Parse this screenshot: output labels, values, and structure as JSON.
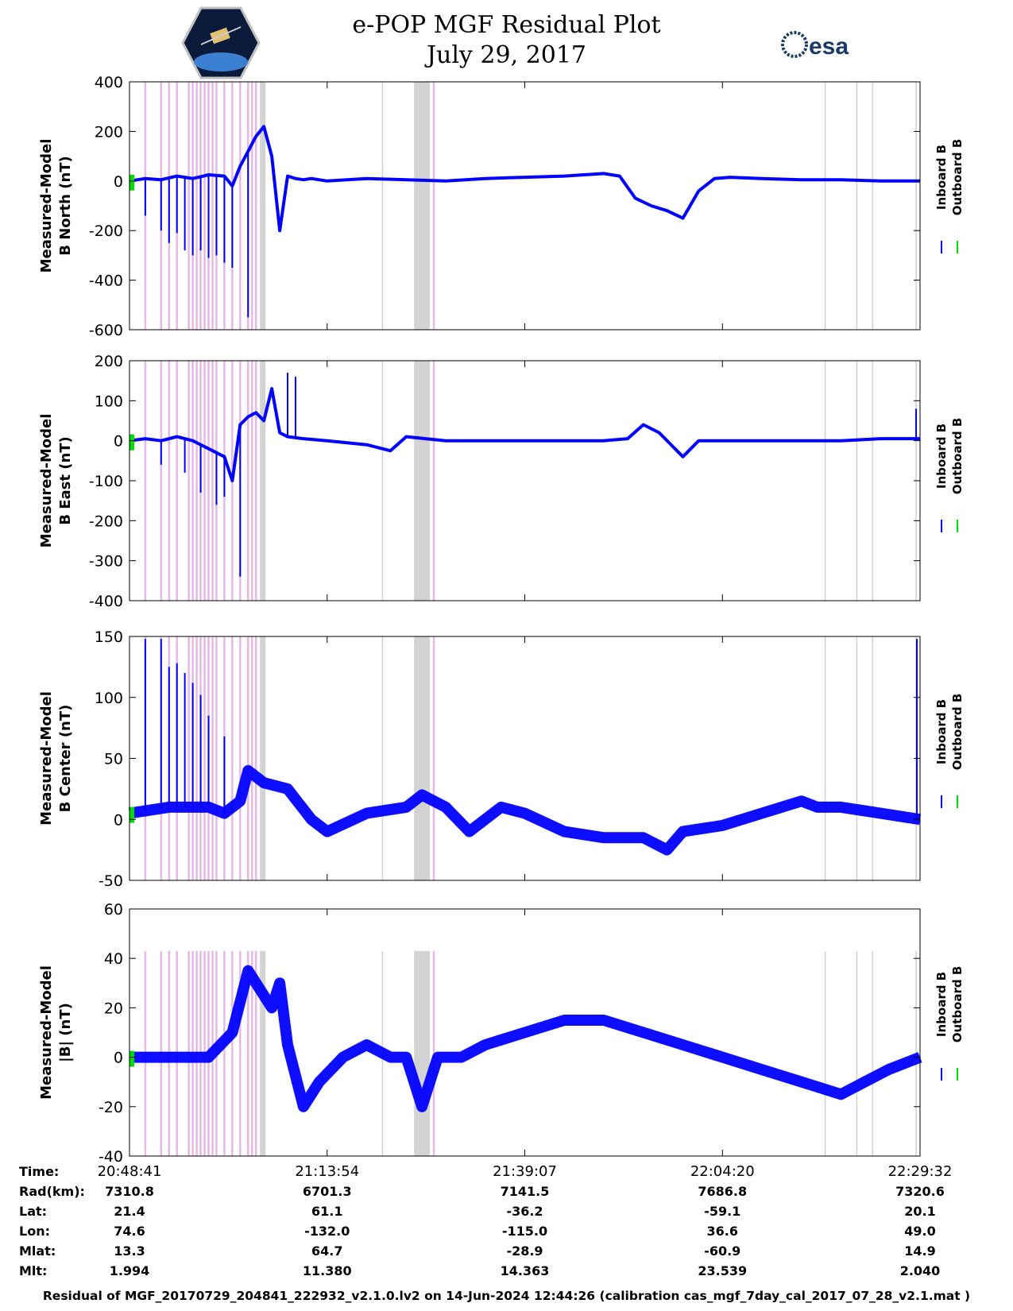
{
  "header": {
    "title_line1": "e-POP MGF Residual Plot",
    "title_line2": "July 29, 2017"
  },
  "legend": {
    "inboard": "Inboard B",
    "outboard": "Outboard B"
  },
  "colors": {
    "inboard": "#0000ff",
    "outboard": "#00dd00",
    "gray_band": "#d3d3d3",
    "pink_band": "#e6b8e6"
  },
  "chart_data": [
    {
      "type": "line",
      "ylabel_line1": "Measured-Model",
      "ylabel_line2": "B North (nT)",
      "ylim": [
        -600,
        400
      ],
      "yticks": [
        400,
        200,
        0,
        -200,
        -400,
        -600
      ],
      "series": [
        {
          "name": "Inboard B",
          "color": "#0000ff",
          "x": [
            0,
            0.02,
            0.04,
            0.06,
            0.08,
            0.1,
            0.12,
            0.13,
            0.14,
            0.15,
            0.16,
            0.17,
            0.18,
            0.19,
            0.2,
            0.21,
            0.22,
            0.23,
            0.25,
            0.3,
            0.35,
            0.4,
            0.45,
            0.5,
            0.55,
            0.6,
            0.62,
            0.64,
            0.66,
            0.68,
            0.7,
            0.72,
            0.74,
            0.76,
            0.8,
            0.85,
            0.9,
            0.95,
            1.0
          ],
          "y": [
            0,
            10,
            5,
            20,
            10,
            25,
            20,
            -20,
            60,
            120,
            180,
            220,
            100,
            -200,
            20,
            10,
            5,
            10,
            0,
            10,
            5,
            0,
            10,
            15,
            20,
            30,
            20,
            -70,
            -100,
            -120,
            -150,
            -40,
            10,
            15,
            10,
            5,
            5,
            0,
            0
          ]
        }
      ],
      "spikes": [
        {
          "x": 0.02,
          "y": -140
        },
        {
          "x": 0.04,
          "y": -200
        },
        {
          "x": 0.05,
          "y": -250
        },
        {
          "x": 0.06,
          "y": -210
        },
        {
          "x": 0.07,
          "y": -280
        },
        {
          "x": 0.08,
          "y": -300
        },
        {
          "x": 0.09,
          "y": -280
        },
        {
          "x": 0.1,
          "y": -310
        },
        {
          "x": 0.11,
          "y": -300
        },
        {
          "x": 0.12,
          "y": -330
        },
        {
          "x": 0.13,
          "y": -350
        },
        {
          "x": 0.15,
          "y": -550
        }
      ]
    },
    {
      "type": "line",
      "ylabel_line1": "Measured-Model",
      "ylabel_line2": "B East (nT)",
      "ylim": [
        -400,
        200
      ],
      "yticks": [
        200,
        100,
        0,
        -100,
        -200,
        -300,
        -400
      ],
      "series": [
        {
          "name": "Inboard B",
          "color": "#0000ff",
          "x": [
            0,
            0.02,
            0.04,
            0.06,
            0.08,
            0.1,
            0.12,
            0.13,
            0.14,
            0.15,
            0.16,
            0.17,
            0.18,
            0.19,
            0.2,
            0.22,
            0.25,
            0.3,
            0.33,
            0.35,
            0.4,
            0.5,
            0.6,
            0.63,
            0.65,
            0.67,
            0.7,
            0.72,
            0.8,
            0.9,
            0.95,
            1.0
          ],
          "y": [
            0,
            5,
            0,
            10,
            0,
            -20,
            -40,
            -100,
            40,
            60,
            70,
            50,
            130,
            20,
            10,
            5,
            0,
            -10,
            -25,
            10,
            0,
            0,
            0,
            5,
            40,
            20,
            -40,
            0,
            0,
            0,
            5,
            5
          ]
        }
      ],
      "spikes": [
        {
          "x": 0.04,
          "y": -60
        },
        {
          "x": 0.07,
          "y": -80
        },
        {
          "x": 0.09,
          "y": -130
        },
        {
          "x": 0.11,
          "y": -160
        },
        {
          "x": 0.12,
          "y": -140
        },
        {
          "x": 0.14,
          "y": -340
        },
        {
          "x": 0.2,
          "y": 170
        },
        {
          "x": 0.21,
          "y": 160
        },
        {
          "x": 0.995,
          "y": 80
        }
      ]
    },
    {
      "type": "line",
      "ylabel_line1": "Measured-Model",
      "ylabel_line2": "B Center (nT)",
      "ylim": [
        -50,
        150
      ],
      "yticks": [
        150,
        100,
        50,
        0,
        -50
      ],
      "series": [
        {
          "name": "Inboard B",
          "color": "#0000ff",
          "x": [
            0,
            0.05,
            0.1,
            0.12,
            0.14,
            0.15,
            0.17,
            0.2,
            0.23,
            0.25,
            0.3,
            0.35,
            0.37,
            0.4,
            0.43,
            0.47,
            0.5,
            0.55,
            0.6,
            0.65,
            0.68,
            0.7,
            0.75,
            0.8,
            0.85,
            0.87,
            0.9,
            0.95,
            1.0
          ],
          "y": [
            5,
            10,
            10,
            5,
            15,
            40,
            30,
            25,
            0,
            -10,
            5,
            10,
            20,
            10,
            -10,
            10,
            5,
            -10,
            -15,
            -15,
            -25,
            -10,
            -5,
            5,
            15,
            10,
            10,
            5,
            0
          ]
        }
      ],
      "spikes": [
        {
          "x": 0.02,
          "y": 148
        },
        {
          "x": 0.04,
          "y": 148
        },
        {
          "x": 0.05,
          "y": 125
        },
        {
          "x": 0.06,
          "y": 128
        },
        {
          "x": 0.07,
          "y": 120
        },
        {
          "x": 0.08,
          "y": 112
        },
        {
          "x": 0.09,
          "y": 102
        },
        {
          "x": 0.1,
          "y": 85
        },
        {
          "x": 0.12,
          "y": 68
        },
        {
          "x": 0.996,
          "y": 148
        }
      ]
    },
    {
      "type": "line",
      "ylabel_line1": "Measured-Model",
      "ylabel_line2": "|B| (nT)",
      "ylim": [
        -40,
        60
      ],
      "yticks": [
        60,
        40,
        20,
        0,
        -20,
        -40
      ],
      "series": [
        {
          "name": "Inboard B",
          "color": "#0000ff",
          "x": [
            0,
            0.05,
            0.1,
            0.13,
            0.15,
            0.17,
            0.18,
            0.19,
            0.2,
            0.22,
            0.24,
            0.27,
            0.3,
            0.33,
            0.35,
            0.37,
            0.39,
            0.42,
            0.45,
            0.5,
            0.55,
            0.6,
            0.65,
            0.7,
            0.75,
            0.8,
            0.85,
            0.9,
            0.93,
            0.96,
            1.0
          ],
          "y": [
            0,
            0,
            0,
            10,
            35,
            25,
            20,
            30,
            5,
            -20,
            -10,
            0,
            5,
            0,
            0,
            -20,
            0,
            0,
            5,
            10,
            15,
            15,
            10,
            5,
            0,
            -5,
            -10,
            -15,
            -10,
            -5,
            0
          ]
        }
      ],
      "spikes": []
    }
  ],
  "x_axis": {
    "row_labels": [
      "Time:",
      "Rad(km):",
      "Lat:",
      "Lon:",
      "Mlat:",
      "Mlt:"
    ],
    "columns": [
      [
        "20:48:41",
        "7310.8",
        "21.4",
        "74.6",
        "13.3",
        "1.994"
      ],
      [
        "21:13:54",
        "6701.3",
        "61.1",
        "-132.0",
        "64.7",
        "11.380"
      ],
      [
        "21:39:07",
        "7141.5",
        "-36.2",
        "-115.0",
        "-28.9",
        "14.363"
      ],
      [
        "22:04:20",
        "7686.8",
        "-59.1",
        "36.6",
        "-60.9",
        "23.539"
      ],
      [
        "22:29:32",
        "7320.6",
        "20.1",
        "49.0",
        "14.9",
        "2.040"
      ]
    ]
  },
  "band_marks": {
    "pink": [
      0.02,
      0.04,
      0.05,
      0.06,
      0.075,
      0.08,
      0.085,
      0.09,
      0.095,
      0.1,
      0.105,
      0.11,
      0.12,
      0.13,
      0.14,
      0.15,
      0.155,
      0.16,
      0.385
    ],
    "gray": [
      0.32,
      0.88,
      0.92,
      0.94,
      0.995
    ],
    "gray_wide": [
      [
        0.165,
        0.172
      ],
      [
        0.36,
        0.38
      ]
    ]
  },
  "footer": "Residual of MGF_20170729_204841_222932_v2.1.0.lv2 on 14-Jun-2024 12:44:26 (calibration cas_mgf_7day_cal_2017_07_28_v2.1.mat )"
}
